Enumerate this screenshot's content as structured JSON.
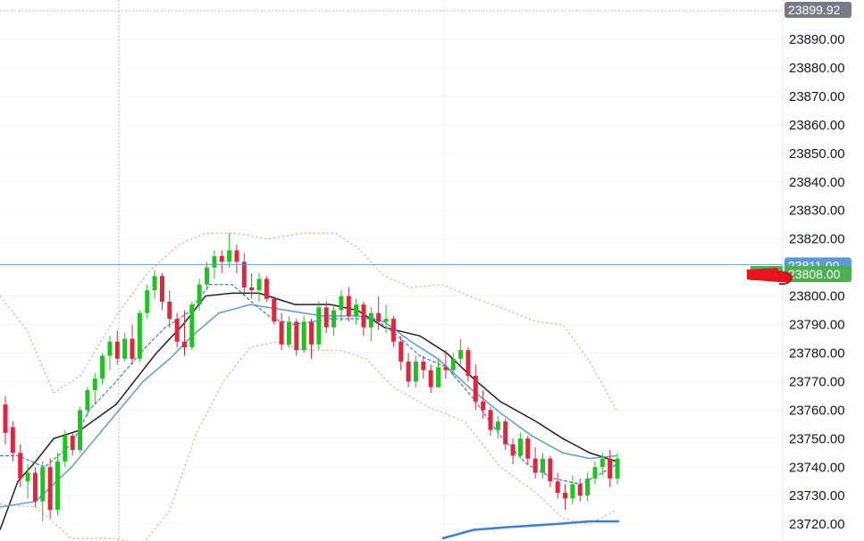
{
  "chart_data": {
    "type": "candlestick",
    "y_axis": {
      "position": "right",
      "range": [
        23715,
        23902
      ],
      "tick_labels": [
        "23890.00",
        "23880.00",
        "23870.00",
        "23860.00",
        "23850.00",
        "23840.00",
        "23830.00",
        "23820.00",
        "23800.00",
        "23790.00",
        "23780.00",
        "23770.00",
        "23760.00",
        "23750.00",
        "23740.00",
        "23730.00",
        "23720.00"
      ],
      "grid": true
    },
    "price_tags": [
      {
        "label": "23899.92",
        "value": 23899.92,
        "color": "#787b86"
      },
      {
        "label": "23811.00",
        "value": 23811.0,
        "color": "#5b9bd5"
      },
      {
        "label": "23808.00",
        "value": 23808.0,
        "color": "#4caf50"
      }
    ],
    "horizontal_line": {
      "value": 23811.0,
      "color": "#5b9bd5"
    },
    "candles": [
      [
        23762,
        23765,
        23748,
        23752
      ],
      [
        23754,
        23756,
        23742,
        23745
      ],
      [
        23745,
        23748,
        23733,
        23736
      ],
      [
        23735,
        23741,
        23729,
        23738
      ],
      [
        23738,
        23740,
        23726,
        23728
      ],
      [
        23728,
        23742,
        23721,
        23740
      ],
      [
        23740,
        23743,
        23722,
        23725
      ],
      [
        23725,
        23745,
        23723,
        23742
      ],
      [
        23742,
        23753,
        23740,
        23751
      ],
      [
        23751,
        23752,
        23744,
        23746
      ],
      [
        23746,
        23761,
        23745,
        23760
      ],
      [
        23760,
        23768,
        23758,
        23767
      ],
      [
        23767,
        23773,
        23762,
        23771
      ],
      [
        23771,
        23780,
        23769,
        23779
      ],
      [
        23779,
        23786,
        23774,
        23784
      ],
      [
        23784,
        23788,
        23776,
        23778
      ],
      [
        23778,
        23787,
        23777,
        23785
      ],
      [
        23785,
        23790,
        23776,
        23778
      ],
      [
        23778,
        23795,
        23777,
        23794
      ],
      [
        23794,
        23804,
        23792,
        23802
      ],
      [
        23802,
        23809,
        23799,
        23807
      ],
      [
        23807,
        23808,
        23795,
        23798
      ],
      [
        23798,
        23802,
        23789,
        23792
      ],
      [
        23792,
        23794,
        23782,
        23784
      ],
      [
        23784,
        23795,
        23779,
        23782
      ],
      [
        23782,
        23798,
        23781,
        23797
      ],
      [
        23797,
        23806,
        23795,
        23804
      ],
      [
        23804,
        23812,
        23802,
        23810
      ],
      [
        23810,
        23816,
        23806,
        23814
      ],
      [
        23814,
        23816,
        23808,
        23812
      ],
      [
        23812,
        23822,
        23810,
        23816
      ],
      [
        23816,
        23818,
        23808,
        23812
      ],
      [
        23812,
        23815,
        23800,
        23803
      ],
      [
        23803,
        23808,
        23799,
        23802
      ],
      [
        23802,
        23808,
        23798,
        23806
      ],
      [
        23806,
        23807,
        23798,
        23799
      ],
      [
        23799,
        23800,
        23790,
        23791
      ],
      [
        23791,
        23794,
        23781,
        23783
      ],
      [
        23783,
        23793,
        23782,
        23791
      ],
      [
        23791,
        23792,
        23779,
        23781
      ],
      [
        23781,
        23793,
        23780,
        23791
      ],
      [
        23791,
        23792,
        23778,
        23783
      ],
      [
        23783,
        23798,
        23781,
        23796
      ],
      [
        23796,
        23798,
        23787,
        23789
      ],
      [
        23789,
        23797,
        23786,
        23795
      ],
      [
        23795,
        23802,
        23791,
        23800
      ],
      [
        23800,
        23803,
        23791,
        23793
      ],
      [
        23793,
        23799,
        23790,
        23797
      ],
      [
        23797,
        23798,
        23786,
        23789
      ],
      [
        23789,
        23796,
        23784,
        23794
      ],
      [
        23794,
        23800,
        23788,
        23791
      ],
      [
        23791,
        23797,
        23787,
        23792
      ],
      [
        23792,
        23793,
        23782,
        23784
      ],
      [
        23784,
        23786,
        23774,
        23777
      ],
      [
        23777,
        23780,
        23768,
        23770
      ],
      [
        23770,
        23779,
        23768,
        23777
      ],
      [
        23777,
        23779,
        23771,
        23774
      ],
      [
        23774,
        23776,
        23766,
        23768
      ],
      [
        23768,
        23778,
        23768,
        23775
      ],
      [
        23775,
        23781,
        23771,
        23774
      ],
      [
        23774,
        23780,
        23772,
        23778
      ],
      [
        23778,
        23785,
        23776,
        23781
      ],
      [
        23781,
        23782,
        23770,
        23772
      ],
      [
        23772,
        23776,
        23760,
        23763
      ],
      [
        23763,
        23767,
        23757,
        23760
      ],
      [
        23760,
        23761,
        23751,
        23753
      ],
      [
        23753,
        23758,
        23750,
        23756
      ],
      [
        23756,
        23757,
        23746,
        23748
      ],
      [
        23748,
        23750,
        23741,
        23744
      ],
      [
        23744,
        23752,
        23743,
        23750
      ],
      [
        23750,
        23751,
        23741,
        23743
      ],
      [
        23743,
        23747,
        23736,
        23738
      ],
      [
        23738,
        23745,
        23736,
        23743
      ],
      [
        23743,
        23744,
        23733,
        23735
      ],
      [
        23735,
        23738,
        23729,
        23731
      ],
      [
        23731,
        23734,
        23725,
        23729
      ],
      [
        23729,
        23737,
        23727,
        23734
      ],
      [
        23734,
        23736,
        23728,
        23730
      ],
      [
        23730,
        23738,
        23728,
        23736
      ],
      [
        23736,
        23742,
        23734,
        23740
      ],
      [
        23740,
        23745,
        23737,
        23743
      ],
      [
        23743,
        23746,
        23733,
        23736
      ],
      [
        23736,
        23745,
        23734,
        23743
      ]
    ],
    "moving_averages": [
      {
        "color": "#1f1f1f",
        "values": [
          [
            0,
            23718
          ],
          [
            20,
            23735
          ],
          [
            40,
            23742
          ],
          [
            60,
            23750
          ],
          [
            90,
            23753
          ],
          [
            130,
            23762
          ],
          [
            175,
            23780
          ],
          [
            205,
            23790
          ],
          [
            230,
            23800
          ],
          [
            260,
            23801
          ],
          [
            290,
            23801
          ],
          [
            330,
            23797
          ],
          [
            370,
            23797
          ],
          [
            400,
            23795
          ],
          [
            430,
            23789
          ],
          [
            470,
            23786
          ],
          [
            500,
            23780
          ],
          [
            530,
            23771
          ],
          [
            560,
            23763
          ],
          [
            600,
            23756
          ],
          [
            630,
            23750
          ],
          [
            660,
            23745
          ],
          [
            690,
            23742
          ]
        ]
      },
      {
        "color": "#5b9bd5",
        "values": [
          [
            0,
            23726
          ],
          [
            40,
            23728
          ],
          [
            80,
            23740
          ],
          [
            120,
            23755
          ],
          [
            160,
            23770
          ],
          [
            190,
            23778
          ],
          [
            215,
            23786
          ],
          [
            245,
            23794
          ],
          [
            280,
            23797
          ],
          [
            320,
            23795
          ],
          [
            360,
            23793
          ],
          [
            400,
            23793
          ],
          [
            430,
            23791
          ],
          [
            460,
            23784
          ],
          [
            490,
            23778
          ],
          [
            525,
            23768
          ],
          [
            560,
            23759
          ],
          [
            595,
            23751
          ],
          [
            630,
            23745
          ],
          [
            660,
            23743
          ],
          [
            690,
            23744
          ]
        ]
      },
      {
        "color": "#3a7fd0",
        "dashed": true,
        "values": [
          [
            0,
            23744
          ],
          [
            20,
            23744
          ],
          [
            50,
            23740
          ],
          [
            80,
            23748
          ],
          [
            100,
            23760
          ],
          [
            130,
            23770
          ],
          [
            160,
            23781
          ],
          [
            185,
            23789
          ],
          [
            210,
            23794
          ],
          [
            235,
            23804
          ],
          [
            260,
            23804
          ],
          [
            285,
            23797
          ],
          [
            305,
            23792
          ],
          [
            330,
            23790
          ],
          [
            370,
            23792
          ],
          [
            400,
            23792
          ],
          [
            420,
            23792
          ],
          [
            445,
            23786
          ],
          [
            470,
            23779
          ],
          [
            500,
            23775
          ],
          [
            530,
            23764
          ],
          [
            560,
            23751
          ],
          [
            590,
            23741
          ],
          [
            620,
            23736
          ],
          [
            650,
            23734
          ],
          [
            680,
            23739
          ],
          [
            690,
            23741
          ]
        ]
      }
    ],
    "bands": [
      {
        "color": "#f0a070",
        "values": [
          [
            0,
            23800
          ],
          [
            30,
            23788
          ],
          [
            60,
            23766
          ],
          [
            90,
            23772
          ],
          [
            130,
            23793
          ],
          [
            165,
            23808
          ],
          [
            200,
            23818
          ],
          [
            230,
            23822
          ],
          [
            265,
            23822
          ],
          [
            300,
            23820
          ],
          [
            340,
            23822
          ],
          [
            375,
            23822
          ],
          [
            400,
            23817
          ],
          [
            430,
            23807
          ],
          [
            460,
            23803
          ],
          [
            495,
            23804
          ],
          [
            525,
            23800
          ],
          [
            560,
            23796
          ],
          [
            600,
            23791
          ],
          [
            630,
            23790
          ],
          [
            660,
            23777
          ],
          [
            690,
            23760
          ]
        ]
      },
      {
        "color": "#f0a070",
        "values": [
          [
            0,
            23727
          ],
          [
            40,
            23726
          ],
          [
            80,
            23715
          ],
          [
            130,
            23715
          ],
          [
            160,
            23713
          ],
          [
            190,
            23725
          ],
          [
            220,
            23752
          ],
          [
            250,
            23770
          ],
          [
            280,
            23782
          ],
          [
            310,
            23784
          ],
          [
            340,
            23781
          ],
          [
            380,
            23781
          ],
          [
            410,
            23778
          ],
          [
            440,
            23768
          ],
          [
            480,
            23761
          ],
          [
            520,
            23756
          ],
          [
            560,
            23740
          ],
          [
            600,
            23731
          ],
          [
            630,
            23722
          ],
          [
            660,
            23720
          ],
          [
            690,
            23725
          ]
        ]
      }
    ],
    "ma_long": {
      "color": "#3a7fd0",
      "values": [
        [
          495,
          23715
        ],
        [
          530,
          23718
        ],
        [
          570,
          23719
        ],
        [
          620,
          23720
        ],
        [
          660,
          23721
        ],
        [
          693,
          23721
        ]
      ]
    }
  }
}
